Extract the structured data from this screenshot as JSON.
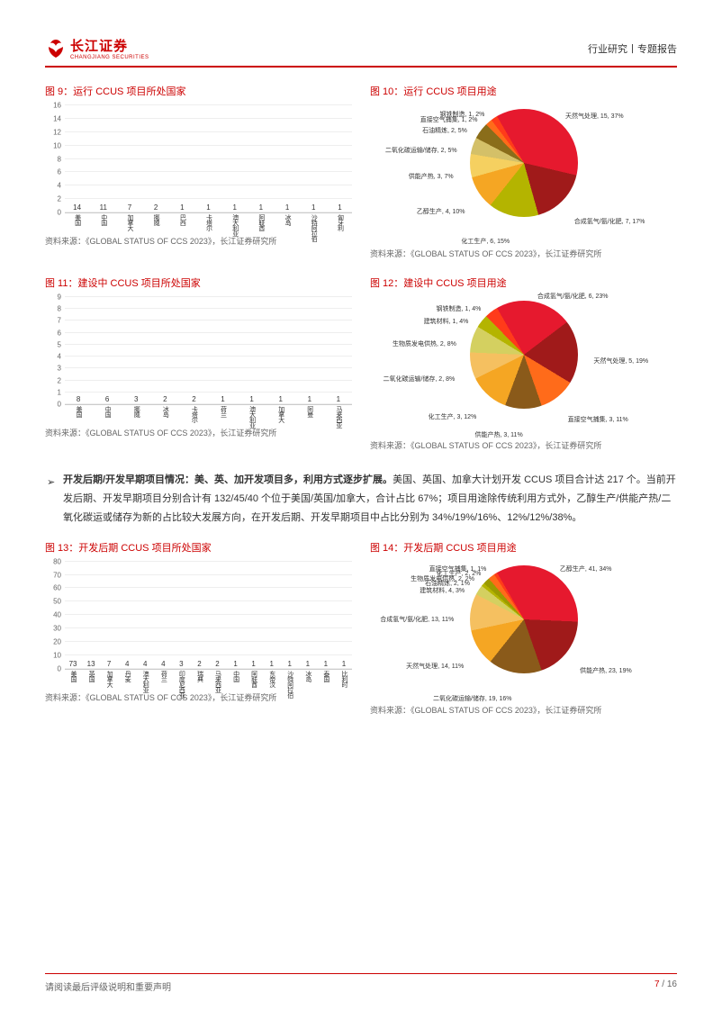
{
  "header": {
    "logo_text": "长江证券",
    "logo_sub": "CHANGJIANG SECURITIES",
    "right": "行业研究丨专题报告"
  },
  "chart9": {
    "type": "bar",
    "title": "图 9：运行 CCUS 项目所处国家",
    "ymax": 16,
    "ytick_step": 2,
    "categories": [
      "美国",
      "中国",
      "加拿大",
      "挪威",
      "巴西",
      "卡塔尔",
      "澳大利亚",
      "阿联酋",
      "冰岛",
      "沙特阿拉伯",
      "匈牙利"
    ],
    "values": [
      14,
      11,
      7,
      2,
      1,
      1,
      1,
      1,
      1,
      1,
      1
    ],
    "bar_color": "#c6242c",
    "source": "资料来源：《GLOBAL STATUS OF CCS 2023》，长江证券研究所"
  },
  "chart10": {
    "type": "pie",
    "title": "图 10：运行 CCUS 项目用途",
    "slices": [
      {
        "label": "天然气处理, 15, 37%",
        "value": 37,
        "color": "#e6192e"
      },
      {
        "label": "合成氢气/氨/化肥, 7, 17%",
        "value": 17,
        "color": "#a01a1a"
      },
      {
        "label": "化工生产, 6, 15%",
        "value": 15,
        "color": "#b4b400"
      },
      {
        "label": "乙醇生产, 4, 10%",
        "value": 10,
        "color": "#f5a623"
      },
      {
        "label": "供能产热, 3, 7%",
        "value": 7,
        "color": "#f5d060"
      },
      {
        "label": "二氧化碳运输/储存, 2, 5%",
        "value": 5,
        "color": "#d4c068"
      },
      {
        "label": "石油精炼, 2, 5%",
        "value": 5,
        "color": "#8a6d1a"
      },
      {
        "label": "直接空气捕集, 1, 2%",
        "value": 2,
        "color": "#ff6b1a"
      },
      {
        "label": "钢铁制造, 1, 2%",
        "value": 2,
        "color": "#ff3b1a"
      }
    ],
    "source": "资料来源：《GLOBAL STATUS OF CCS 2023》，长江证券研究所"
  },
  "chart11": {
    "type": "bar",
    "title": "图 11：建设中 CCUS 项目所处国家",
    "ymax": 9,
    "ytick_step": 1,
    "categories": [
      "美国",
      "中国",
      "挪威",
      "冰岛",
      "卡塔尔",
      "荷兰",
      "澳大利亚",
      "加拿大",
      "阿曼",
      "马来西亚"
    ],
    "values": [
      8,
      6,
      3,
      2,
      2,
      1,
      1,
      1,
      1,
      1
    ],
    "bar_color": "#c6242c",
    "source": "资料来源：《GLOBAL STATUS OF CCS 2023》，长江证券研究所"
  },
  "chart12": {
    "type": "pie",
    "title": "图 12：建设中 CCUS 项目用途",
    "slices": [
      {
        "label": "合成氢气/氨/化肥, 6, 23%",
        "value": 23,
        "color": "#e6192e"
      },
      {
        "label": "天然气处理, 5, 19%",
        "value": 19,
        "color": "#a01a1a"
      },
      {
        "label": "直接空气捕集, 3, 11%",
        "value": 11,
        "color": "#ff6b1a"
      },
      {
        "label": "供能产热, 3, 11%",
        "value": 11,
        "color": "#8a5a1a"
      },
      {
        "label": "化工生产, 3, 12%",
        "value": 12,
        "color": "#f5a623"
      },
      {
        "label": "二氧化碳运输/储存, 2, 8%",
        "value": 8,
        "color": "#f5c060"
      },
      {
        "label": "生物质发电供热, 2, 8%",
        "value": 8,
        "color": "#d4d060"
      },
      {
        "label": "建筑材料, 1, 4%",
        "value": 4,
        "color": "#b4b400"
      },
      {
        "label": "钢铁制造, 1, 4%",
        "value": 4,
        "color": "#ff3b1a"
      }
    ],
    "source": "资料来源：《GLOBAL STATUS OF CCS 2023》，长江证券研究所"
  },
  "body_para": {
    "lead": "开发后期/开发早期项目情况：美、英、加开发项目多，利用方式逐步扩展。",
    "rest": "美国、英国、加拿大计划开发 CCUS 项目合计达 217 个。当前开发后期、开发早期项目分别合计有 132/45/40 个位于美国/英国/加拿大，合计占比 67%；项目用途除传统利用方式外，乙醇生产/供能产热/二氧化碳运或储存为新的占比较大发展方向，在开发后期、开发早期项目中占比分别为 34%/19%/16%、12%/12%/38%。"
  },
  "chart13": {
    "type": "bar",
    "title": "图 13：开发后期 CCUS 项目所处国家",
    "ymax": 80,
    "ytick_step": 10,
    "categories": [
      "美国",
      "英国",
      "加拿大",
      "丹麦",
      "澳大利亚",
      "荷兰",
      "印度尼西亚",
      "瑞典",
      "马来西亚",
      "中国",
      "阿联酋",
      "东帝汶",
      "沙特阿拉伯",
      "冰岛",
      "泰国",
      "比利时"
    ],
    "values": [
      73,
      13,
      7,
      4,
      4,
      4,
      3,
      2,
      2,
      1,
      1,
      1,
      1,
      1,
      1,
      1
    ],
    "bar_color": "#c6242c",
    "source": "资料来源：《GLOBAL STATUS OF CCS 2023》，长江证券研究所"
  },
  "chart14": {
    "type": "pie",
    "title": "图 14：开发后期 CCUS 项目用途",
    "slices": [
      {
        "label": "乙醇生产, 41, 34%",
        "value": 34,
        "color": "#e6192e"
      },
      {
        "label": "供能产热, 23, 19%",
        "value": 19,
        "color": "#a01a1a"
      },
      {
        "label": "二氧化碳运输/储存, 19, 16%",
        "value": 16,
        "color": "#8a5a1a"
      },
      {
        "label": "天然气处理, 14, 11%",
        "value": 11,
        "color": "#f5a623"
      },
      {
        "label": "合成氢气/氨/化肥, 13, 11%",
        "value": 11,
        "color": "#f5c060"
      },
      {
        "label": "建筑材料, 4, 3%",
        "value": 3,
        "color": "#d4d060"
      },
      {
        "label": "石油精炼, 2, 1%",
        "value": 1,
        "color": "#b4b400"
      },
      {
        "label": "生物质发电供热, 2, 2%",
        "value": 2,
        "color": "#9a9a00"
      },
      {
        "label": "化工生产, 2, 2%",
        "value": 2,
        "color": "#ff6b1a"
      },
      {
        "label": "直接空气捕集, 1, 1%",
        "value": 1,
        "color": "#ff3b1a"
      }
    ],
    "source": "资料来源：《GLOBAL STATUS OF CCS 2023》，长江证券研究所"
  },
  "footer": {
    "left": "请阅读最后评级说明和重要声明",
    "page_current": "7",
    "page_sep": " / ",
    "page_total": "16"
  }
}
